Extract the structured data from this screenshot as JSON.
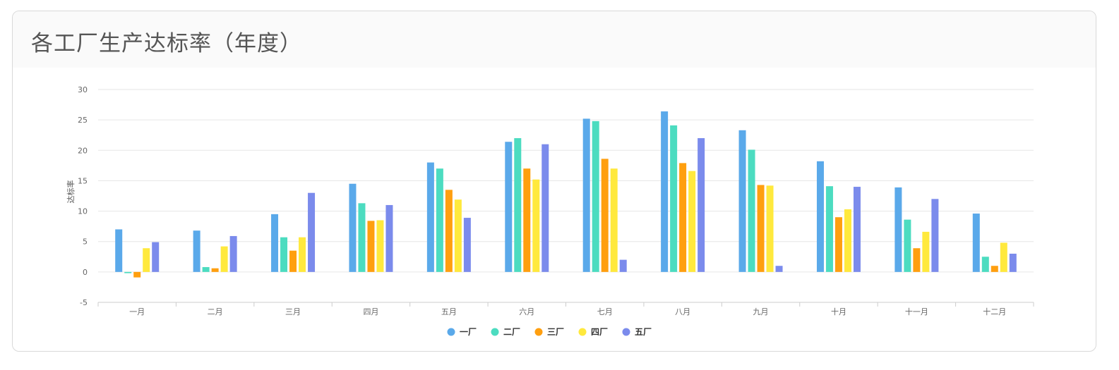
{
  "card": {
    "title": "各工厂生产达标率（年度）"
  },
  "chart_data": {
    "type": "bar",
    "ylabel": "达标率",
    "xlabel": "",
    "ylim": [
      -5,
      30
    ],
    "yticks": [
      30,
      25,
      20,
      15,
      10,
      5,
      0,
      -5
    ],
    "grid": true,
    "legend_position": "bottom-center",
    "categories": [
      "一月",
      "二月",
      "三月",
      "四月",
      "五月",
      "六月",
      "七月",
      "八月",
      "九月",
      "十月",
      "十一月",
      "十二月"
    ],
    "series": [
      {
        "name": "一厂",
        "color": "#5aa9ea",
        "values": [
          7,
          6.8,
          9.5,
          14.5,
          18,
          21.4,
          25.2,
          26.4,
          23.3,
          18.2,
          13.9,
          9.6
        ]
      },
      {
        "name": "二厂",
        "color": "#4cdcc0",
        "values": [
          -0.2,
          0.8,
          5.7,
          11.3,
          17,
          22,
          24.8,
          24.1,
          20.1,
          14.1,
          8.6,
          2.5
        ]
      },
      {
        "name": "三厂",
        "color": "#ff9f0f",
        "values": [
          -0.9,
          0.6,
          3.5,
          8.4,
          13.5,
          17,
          18.6,
          17.9,
          14.3,
          9,
          3.9,
          1
        ]
      },
      {
        "name": "四厂",
        "color": "#ffe93d",
        "values": [
          3.9,
          4.2,
          5.7,
          8.5,
          11.9,
          15.2,
          17,
          16.6,
          14.2,
          10.3,
          6.6,
          4.8
        ]
      },
      {
        "name": "五厂",
        "color": "#7b8bec",
        "values": [
          4.9,
          5.9,
          13,
          11,
          8.9,
          21,
          2,
          22,
          1,
          14,
          12,
          3
        ]
      }
    ]
  }
}
